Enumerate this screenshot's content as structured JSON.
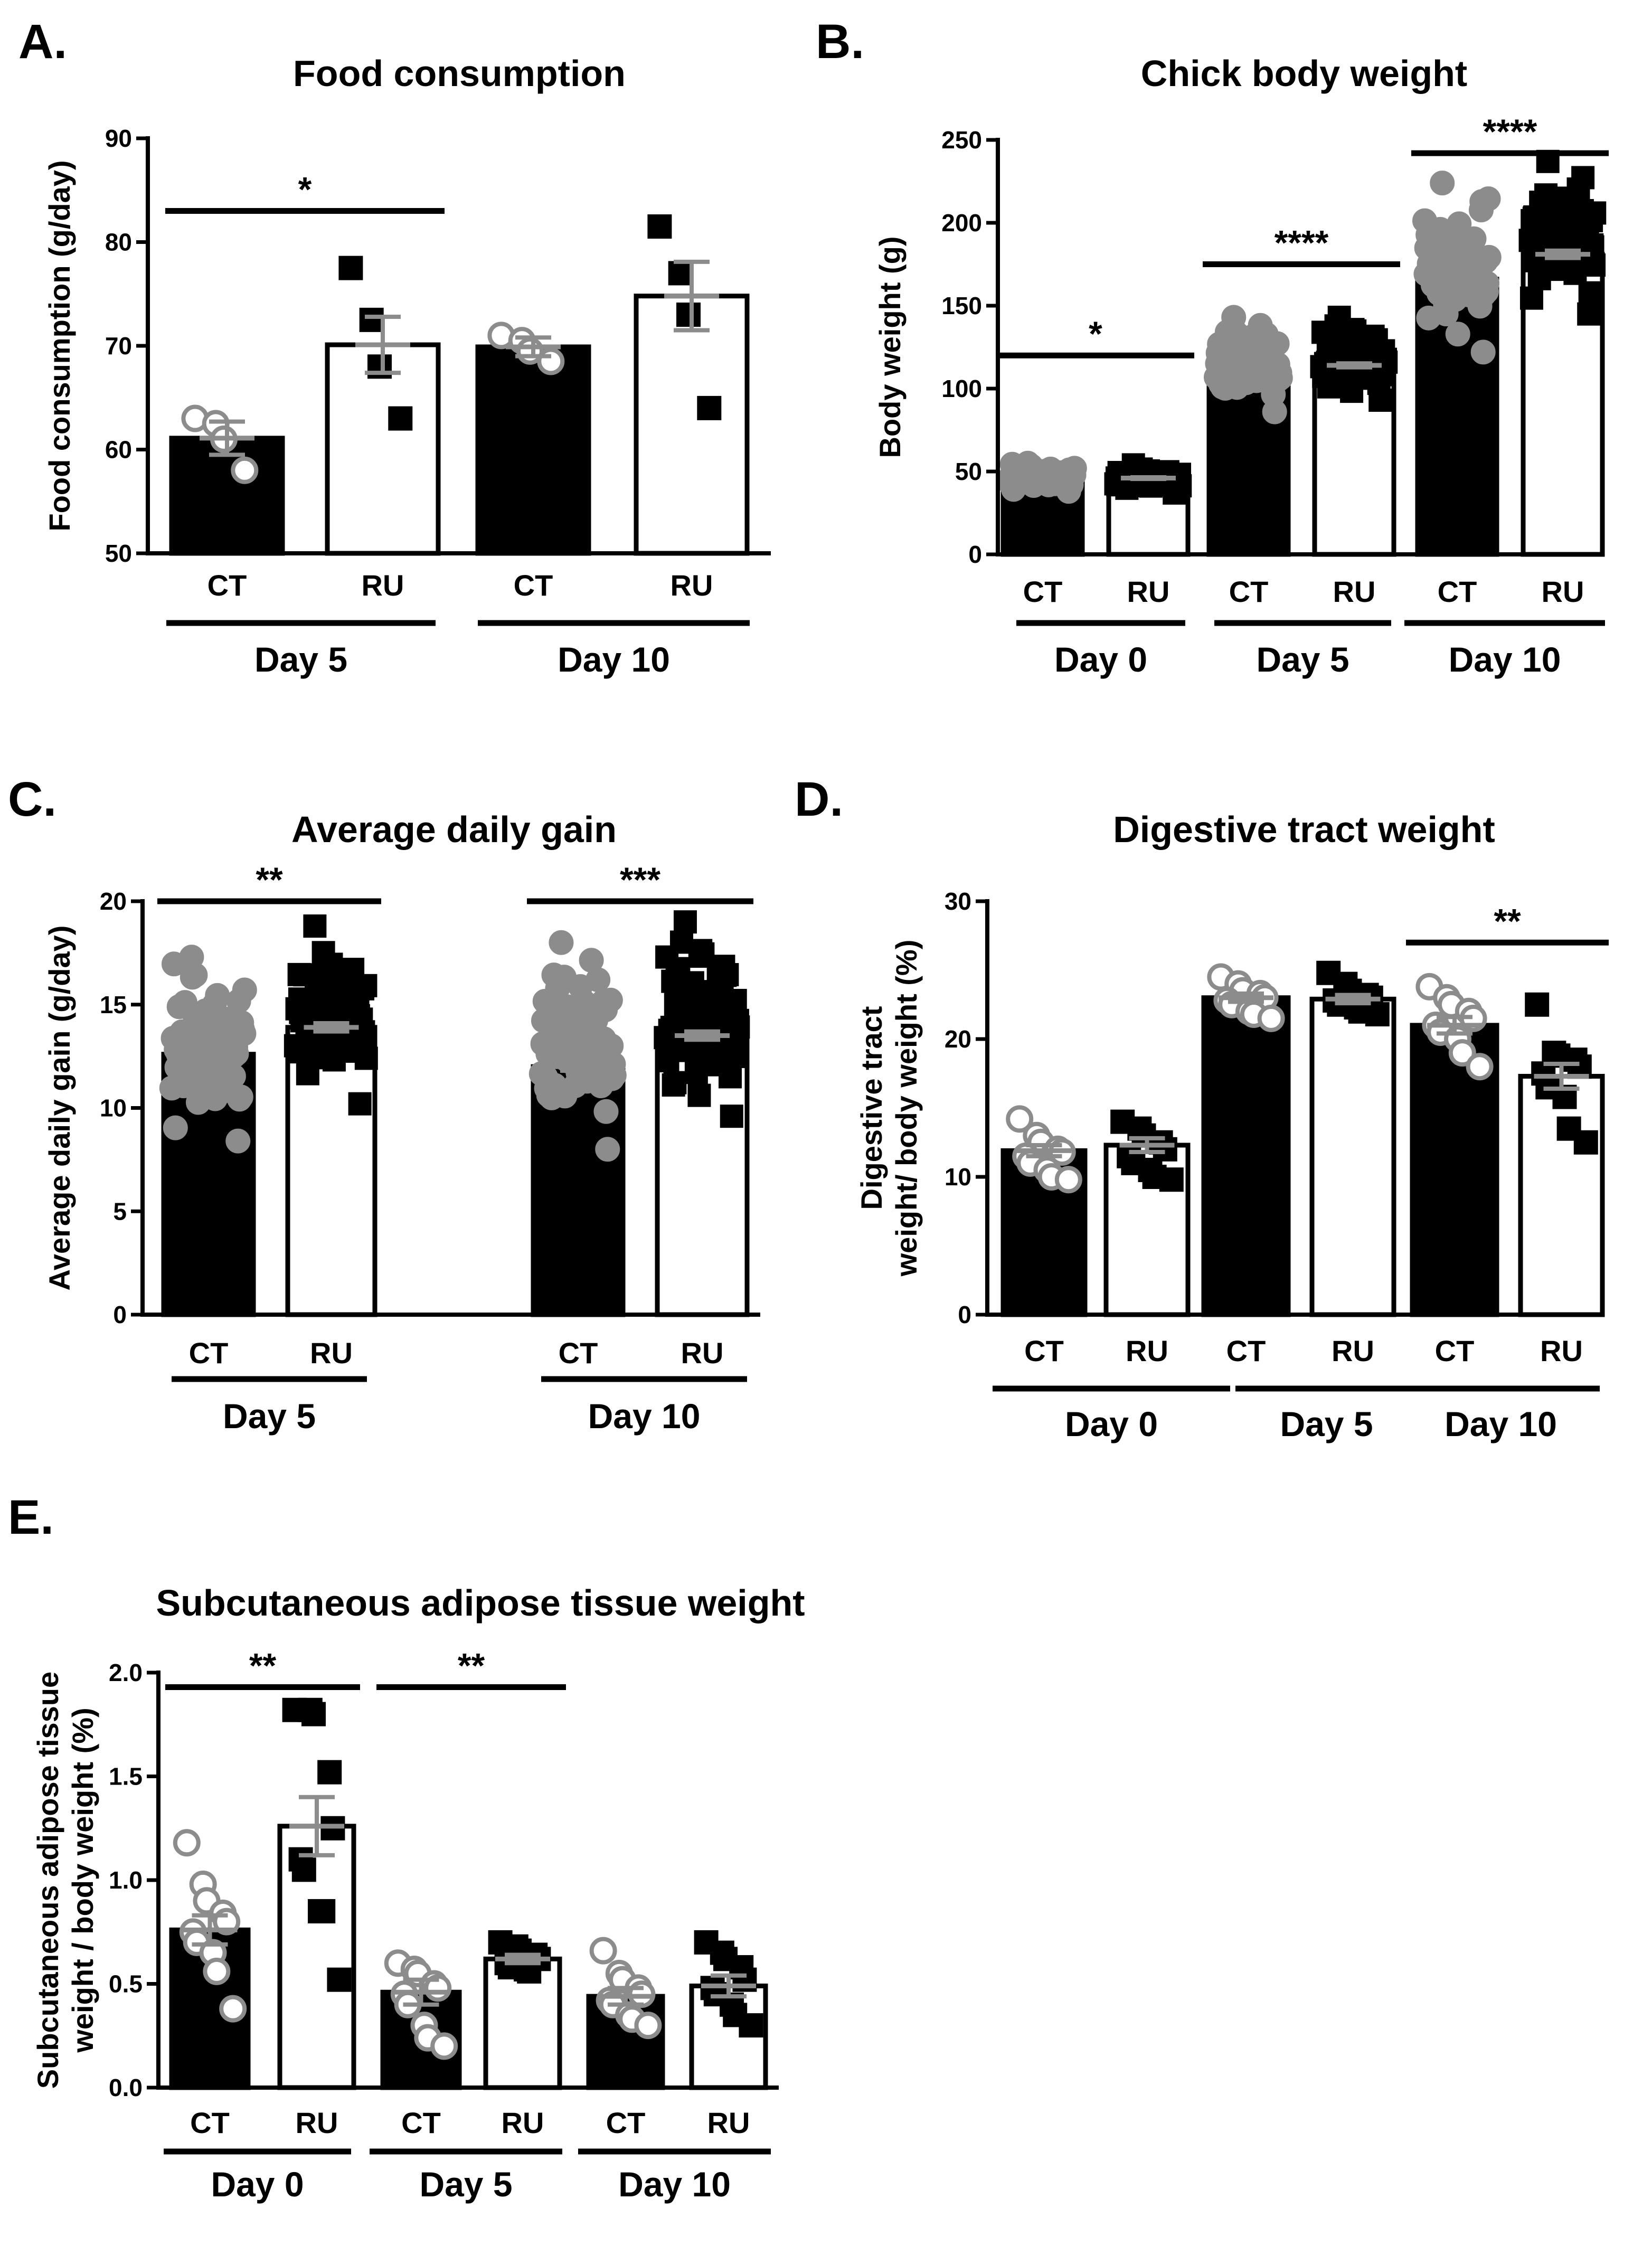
{
  "colors": {
    "ct_fill": "#000000",
    "ru_fill": "#ffffff",
    "ct_points": "#8c8c8c",
    "ru_points": "#000000",
    "mean_line": "#8c8c8c",
    "axis": "#000000"
  },
  "chart_data": [
    {
      "panel": "A.",
      "type": "bar",
      "title": "Food consumption",
      "ylabel": "Food consumption (g/day)",
      "ylim": [
        50,
        90
      ],
      "yticks": [
        50,
        60,
        70,
        80,
        90
      ],
      "categories": [
        "CT",
        "RU",
        "CT",
        "RU"
      ],
      "groups": [
        {
          "label": "Day 5",
          "bars": [
            0,
            1
          ]
        },
        {
          "label": "Day 10",
          "bars": [
            2,
            3
          ]
        }
      ],
      "series": [
        {
          "name": "CT",
          "index": [
            0,
            2
          ]
        },
        {
          "name": "RU",
          "index": [
            1,
            3
          ]
        }
      ],
      "values": [
        61.1,
        70.1,
        69.9,
        74.8
      ],
      "sem": [
        1.6,
        2.7,
        0.9,
        3.3
      ],
      "points": [
        [
          63,
          62.5,
          61,
          58
        ],
        [
          77.5,
          72.5,
          68,
          63
        ],
        [
          71,
          70.5,
          69.5,
          68.5
        ],
        [
          81.5,
          77,
          73,
          64
        ]
      ],
      "significance": [
        {
          "label": "*",
          "from": 0,
          "to": 1,
          "y": 83
        }
      ]
    },
    {
      "panel": "B.",
      "type": "bar",
      "title": "Chick body weight",
      "ylabel": "Body weight (g)",
      "ylim": [
        0,
        250
      ],
      "yticks": [
        0,
        50,
        100,
        150,
        200,
        250
      ],
      "categories": [
        "CT",
        "RU",
        "CT",
        "RU",
        "CT",
        "RU"
      ],
      "groups": [
        {
          "label": "Day 0",
          "bars": [
            0,
            1
          ]
        },
        {
          "label": "Day 5",
          "bars": [
            2,
            3
          ]
        },
        {
          "label": "Day 10",
          "bars": [
            4,
            5
          ]
        }
      ],
      "series": [
        {
          "name": "CT",
          "index": [
            0,
            2,
            4
          ]
        },
        {
          "name": "RU",
          "index": [
            1,
            3,
            5
          ]
        }
      ],
      "values": [
        46,
        46,
        108,
        114,
        166,
        181
      ],
      "sem": [
        0.5,
        0.5,
        1.2,
        1.2,
        2.2,
        2.2
      ],
      "spread": [
        [
          38,
          55
        ],
        [
          37,
          54
        ],
        [
          86,
          143
        ],
        [
          93,
          143
        ],
        [
          122,
          224
        ],
        [
          145,
          237
        ]
      ],
      "significance": [
        {
          "label": "*",
          "from": 0,
          "to": 1,
          "y": 120
        },
        {
          "label": "****",
          "from": 2,
          "to": 3,
          "y": 175
        },
        {
          "label": "****",
          "from": 4,
          "to": 5,
          "y": 242
        }
      ]
    },
    {
      "panel": "C.",
      "type": "bar",
      "title": "Average daily gain",
      "ylabel": "Average daily gain (g/day)",
      "ylim": [
        0,
        20
      ],
      "yticks": [
        0,
        5,
        10,
        15,
        20
      ],
      "categories": [
        "CT",
        "RU",
        "CT",
        "RU"
      ],
      "groups": [
        {
          "label": "Day 5",
          "bars": [
            0,
            1
          ]
        },
        {
          "label": "Day 10",
          "bars": [
            2,
            3
          ]
        }
      ],
      "series": [
        {
          "name": "CT",
          "index": [
            0,
            2
          ]
        },
        {
          "name": "RU",
          "index": [
            1,
            3
          ]
        }
      ],
      "values": [
        12.6,
        13.9,
        12.0,
        13.5
      ],
      "sem": [
        0.2,
        0.2,
        0.2,
        0.2
      ],
      "spread": [
        [
          8.4,
          17.3
        ],
        [
          10.2,
          18.8
        ],
        [
          8.0,
          18.0
        ],
        [
          9.6,
          19.0
        ]
      ],
      "significance": [
        {
          "label": "**",
          "from": 0,
          "to": 1,
          "y": 20
        },
        {
          "label": "***",
          "from": 2,
          "to": 3,
          "y": 20
        }
      ]
    },
    {
      "panel": "D.",
      "type": "bar",
      "title": "Digestive tract weight",
      "ylabel": [
        "Digestive tract",
        "weight/ body weight (%)"
      ],
      "ylim": [
        0,
        30
      ],
      "yticks": [
        0,
        10,
        20,
        30
      ],
      "categories": [
        "CT",
        "RU",
        "CT",
        "RU",
        "CT",
        "RU"
      ],
      "groups": [
        {
          "label": "Day 0",
          "bars": [
            0,
            1
          ]
        },
        {
          "label": "Day 5",
          "bars": [
            2,
            3
          ]
        },
        {
          "label": "Day 10",
          "bars": [
            4,
            5
          ]
        }
      ],
      "series": [
        {
          "name": "CT",
          "index": [
            0,
            2,
            4
          ]
        },
        {
          "name": "RU",
          "index": [
            1,
            3,
            5
          ]
        }
      ],
      "values": [
        11.9,
        12.3,
        23.0,
        22.9,
        21.0,
        17.3
      ],
      "sem": [
        0.4,
        0.5,
        0.3,
        0.3,
        0.6,
        0.9
      ],
      "points": [
        [
          14.2,
          13.0,
          12.5,
          12.0,
          11.8,
          11.5,
          11.0,
          10.5,
          10.0,
          9.8
        ],
        [
          14.0,
          13.5,
          13.0,
          12.5,
          12.0,
          11.5,
          11.0,
          10.5,
          10.0,
          9.8
        ],
        [
          24.5,
          24.0,
          23.5,
          23.3,
          23.0,
          22.8,
          22.5,
          22.0,
          21.8,
          21.5
        ],
        [
          24.8,
          24.0,
          23.5,
          23.2,
          23.0,
          22.8,
          22.5,
          22.3,
          22.0,
          21.8
        ],
        [
          23.8,
          23.0,
          22.5,
          22.0,
          21.5,
          21.0,
          20.5,
          20.0,
          19.0,
          18.0
        ],
        [
          22.5,
          19.0,
          18.8,
          18.5,
          18.0,
          17.5,
          16.5,
          15.8,
          13.5,
          12.5
        ]
      ],
      "significance": [
        {
          "label": "**",
          "from": 4,
          "to": 5,
          "y": 27
        }
      ]
    },
    {
      "panel": "E.",
      "type": "bar",
      "title": "Subcutaneous adipose tissue weight",
      "ylabel": [
        "Subcutaneous adipose tissue",
        "weight / body weight (%)"
      ],
      "ylim": [
        0,
        2.0
      ],
      "yticks": [
        "0.0",
        "0.5",
        "1.0",
        "1.5",
        "2.0"
      ],
      "categories": [
        "CT",
        "RU",
        "CT",
        "RU",
        "CT",
        "RU"
      ],
      "groups": [
        {
          "label": "Day 0",
          "bars": [
            0,
            1
          ]
        },
        {
          "label": "Day 5",
          "bars": [
            2,
            3
          ]
        },
        {
          "label": "Day 10",
          "bars": [
            4,
            5
          ]
        }
      ],
      "series": [
        {
          "name": "CT",
          "index": [
            0,
            2,
            4
          ]
        },
        {
          "name": "RU",
          "index": [
            1,
            3,
            5
          ]
        }
      ],
      "values": [
        0.76,
        1.26,
        0.46,
        0.62,
        0.44,
        0.49
      ],
      "sem": [
        0.07,
        0.14,
        0.06,
        0.02,
        0.04,
        0.05
      ],
      "points": [
        [
          1.18,
          0.98,
          0.9,
          0.84,
          0.8,
          0.75,
          0.7,
          0.65,
          0.56,
          0.38
        ],
        [
          1.82,
          1.82,
          1.8,
          1.52,
          1.25,
          1.1,
          1.05,
          0.85,
          0.85,
          0.52
        ],
        [
          0.6,
          0.57,
          0.55,
          0.5,
          0.48,
          0.45,
          0.4,
          0.3,
          0.24,
          0.2
        ],
        [
          0.7,
          0.68,
          0.66,
          0.64,
          0.62,
          0.6,
          0.58,
          0.57,
          0.56
        ],
        [
          0.66,
          0.55,
          0.52,
          0.48,
          0.45,
          0.42,
          0.4,
          0.35,
          0.33,
          0.3
        ],
        [
          0.7,
          0.65,
          0.62,
          0.58,
          0.52,
          0.48,
          0.45,
          0.4,
          0.35,
          0.3
        ]
      ],
      "significance": [
        {
          "label": "**",
          "from": 0,
          "to": 1,
          "y": 1.93
        },
        {
          "label": "**",
          "from": 2,
          "to": 3,
          "y": 1.93
        }
      ]
    }
  ]
}
